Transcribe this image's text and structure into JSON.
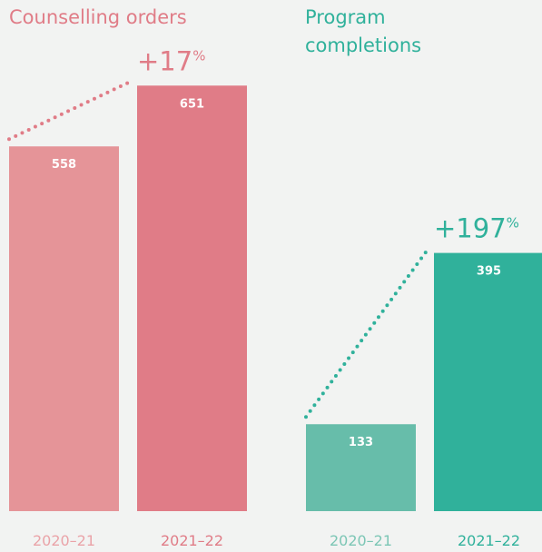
{
  "chart_data": [
    {
      "type": "bar",
      "title": "Counselling orders",
      "categories": [
        "2020–21",
        "2021–22"
      ],
      "values": [
        558,
        651
      ],
      "colors": [
        "#e59498",
        "#e07c87"
      ],
      "label_colors": [
        "#eaa3a8",
        "#e07c87"
      ],
      "title_color": "#e07c87",
      "annotation": {
        "text": "+17",
        "unit": "%"
      }
    },
    {
      "type": "bar",
      "title": "Program completions",
      "categories": [
        "2020–21",
        "2021–22"
      ],
      "values": [
        133,
        395
      ],
      "colors": [
        "#67bdaa",
        "#30b19b"
      ],
      "label_colors": [
        "#7cc6b5",
        "#30b19b"
      ],
      "title_color": "#30b19b",
      "annotation": {
        "text": "+197",
        "unit": "%"
      }
    }
  ]
}
